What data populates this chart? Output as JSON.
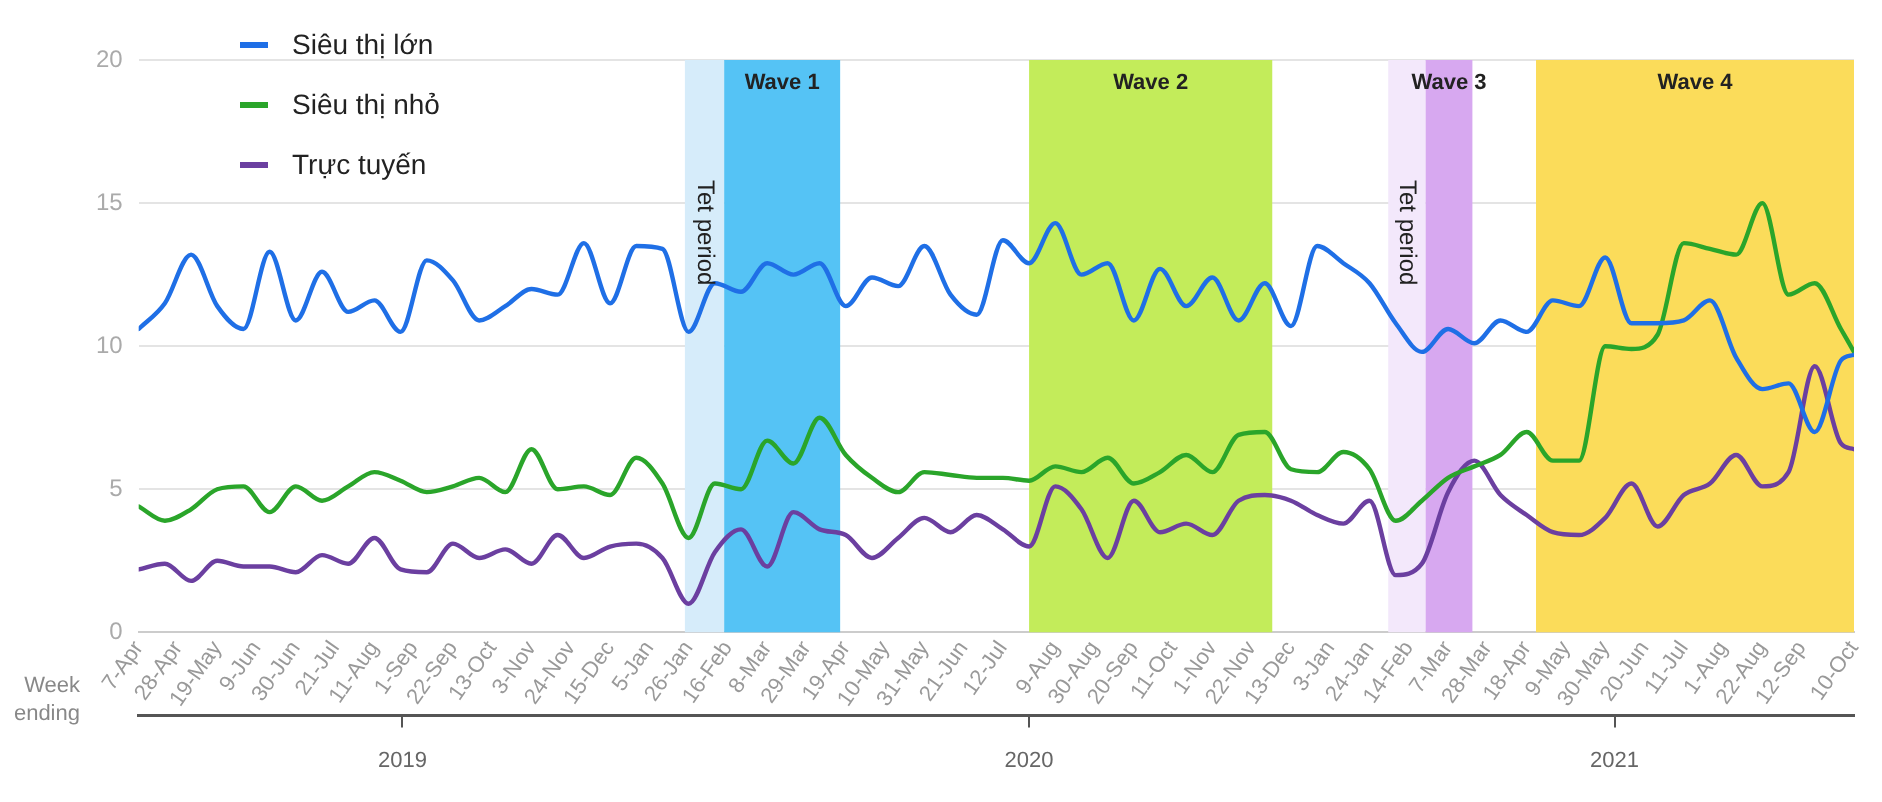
{
  "chart_data": {
    "type": "line",
    "xlabel": "Week ending",
    "x": [
      "2019-04-07",
      "2019-04-21",
      "2019-05-05",
      "2019-05-19",
      "2019-06-02",
      "2019-06-16",
      "2019-06-30",
      "2019-07-14",
      "2019-07-28",
      "2019-08-11",
      "2019-08-25",
      "2019-09-08",
      "2019-09-22",
      "2019-10-06",
      "2019-10-20",
      "2019-11-03",
      "2019-11-17",
      "2019-12-01",
      "2019-12-15",
      "2019-12-29",
      "2020-01-12",
      "2020-01-26",
      "2020-02-09",
      "2020-02-23",
      "2020-03-08",
      "2020-03-22",
      "2020-04-05",
      "2020-04-19",
      "2020-05-03",
      "2020-05-17",
      "2020-05-31",
      "2020-06-14",
      "2020-06-28",
      "2020-07-12",
      "2020-07-26",
      "2020-08-09",
      "2020-08-23",
      "2020-09-06",
      "2020-09-20",
      "2020-10-04",
      "2020-10-18",
      "2020-11-01",
      "2020-11-15",
      "2020-11-29",
      "2020-12-13",
      "2020-12-27",
      "2021-01-10",
      "2021-01-24",
      "2021-02-07",
      "2021-02-21",
      "2021-03-07",
      "2021-03-21",
      "2021-04-04",
      "2021-04-18",
      "2021-05-02",
      "2021-05-16",
      "2021-05-30",
      "2021-06-13",
      "2021-06-27",
      "2021-07-11",
      "2021-07-25",
      "2021-08-08",
      "2021-08-22",
      "2021-09-05",
      "2021-09-19",
      "2021-10-03",
      "2021-10-10"
    ],
    "series": [
      {
        "name": "Siêu thị lớn",
        "color": "#1f6fe6",
        "values": [
          10.6,
          11.5,
          13.2,
          11.4,
          10.6,
          13.3,
          10.9,
          12.6,
          11.2,
          11.6,
          10.5,
          13.0,
          12.3,
          10.9,
          11.4,
          12.0,
          11.8,
          13.6,
          11.5,
          13.5,
          13.4,
          10.5,
          12.2,
          11.9,
          12.9,
          12.5,
          12.9,
          11.4,
          12.4,
          12.1,
          13.5,
          11.8,
          11.1,
          13.7,
          12.9,
          14.3,
          12.5,
          12.9,
          10.9,
          12.7,
          11.4,
          12.4,
          10.9,
          12.2,
          10.7,
          13.5,
          12.9,
          12.2,
          10.8,
          9.8,
          10.6,
          10.1,
          10.9,
          10.5,
          11.6,
          11.4,
          13.1,
          10.8,
          10.8,
          10.9,
          11.6,
          9.6,
          8.5,
          8.7,
          7.0,
          9.5,
          9.7
        ]
      },
      {
        "name": "Siêu thị nhỏ",
        "color": "#2aa52a",
        "values": [
          4.4,
          3.9,
          4.3,
          5.0,
          5.1,
          4.2,
          5.1,
          4.6,
          5.1,
          5.6,
          5.3,
          4.9,
          5.1,
          5.4,
          4.9,
          6.4,
          5.0,
          5.1,
          4.8,
          6.1,
          5.2,
          3.3,
          5.2,
          5.0,
          6.7,
          5.9,
          7.5,
          6.2,
          5.4,
          4.9,
          5.6,
          5.5,
          5.4,
          5.4,
          5.3,
          5.8,
          5.6,
          6.1,
          5.2,
          5.6,
          6.2,
          5.6,
          6.9,
          7.0,
          5.7,
          5.6,
          6.3,
          5.7,
          3.9,
          4.6,
          5.4,
          5.8,
          6.2,
          7.0,
          6.0,
          6.0,
          10.0,
          9.9,
          10.4,
          13.6,
          13.4,
          13.2,
          15.0,
          11.8,
          12.2,
          10.6,
          9.8
        ]
      },
      {
        "name": "Trực tuyến",
        "color": "#6b3fa0",
        "values": [
          2.2,
          2.4,
          1.8,
          2.5,
          2.3,
          2.3,
          2.1,
          2.7,
          2.4,
          3.3,
          2.2,
          2.1,
          3.1,
          2.6,
          2.9,
          2.4,
          3.4,
          2.6,
          3.0,
          3.1,
          2.6,
          1.0,
          2.8,
          3.6,
          2.3,
          4.2,
          3.6,
          3.4,
          2.6,
          3.3,
          4.0,
          3.5,
          4.1,
          3.6,
          3.0,
          5.1,
          4.3,
          2.6,
          4.6,
          3.5,
          3.8,
          3.4,
          4.6,
          4.8,
          4.6,
          4.1,
          3.8,
          4.6,
          2.0,
          2.4,
          4.9,
          6.0,
          4.8,
          4.1,
          3.5,
          3.4,
          4.0,
          5.2,
          3.7,
          4.8,
          5.2,
          6.2,
          5.1,
          5.6,
          9.3,
          6.6,
          6.4
        ]
      }
    ],
    "xlim": [
      "2019-04-07",
      "2021-10-10"
    ],
    "xticks": [
      {
        "value": "2019-04-07",
        "label": "7-Apr"
      },
      {
        "value": "2019-04-28",
        "label": "28-Apr"
      },
      {
        "value": "2019-05-19",
        "label": "19-May"
      },
      {
        "value": "2019-06-09",
        "label": "9-Jun"
      },
      {
        "value": "2019-06-30",
        "label": "30-Jun"
      },
      {
        "value": "2019-07-21",
        "label": "21-Jul"
      },
      {
        "value": "2019-08-11",
        "label": "11-Aug"
      },
      {
        "value": "2019-09-01",
        "label": "1-Sep"
      },
      {
        "value": "2019-09-22",
        "label": "22-Sep"
      },
      {
        "value": "2019-10-13",
        "label": "13-Oct"
      },
      {
        "value": "2019-11-03",
        "label": "3-Nov"
      },
      {
        "value": "2019-11-24",
        "label": "24-Nov"
      },
      {
        "value": "2019-12-15",
        "label": "15-Dec"
      },
      {
        "value": "2020-01-05",
        "label": "5-Jan"
      },
      {
        "value": "2020-01-26",
        "label": "26-Jan"
      },
      {
        "value": "2020-02-16",
        "label": "16-Feb"
      },
      {
        "value": "2020-03-08",
        "label": "8-Mar"
      },
      {
        "value": "2020-03-29",
        "label": "29-Mar"
      },
      {
        "value": "2020-04-19",
        "label": "19-Apr"
      },
      {
        "value": "2020-05-10",
        "label": "10-May"
      },
      {
        "value": "2020-05-31",
        "label": "31-May"
      },
      {
        "value": "2020-06-21",
        "label": "21-Jun"
      },
      {
        "value": "2020-07-12",
        "label": "12-Jul"
      },
      {
        "value": "2020-08-09",
        "label": "9-Aug"
      },
      {
        "value": "2020-08-30",
        "label": "30-Aug"
      },
      {
        "value": "2020-09-20",
        "label": "20-Sep"
      },
      {
        "value": "2020-10-11",
        "label": "11-Oct"
      },
      {
        "value": "2020-11-01",
        "label": "1-Nov"
      },
      {
        "value": "2020-11-22",
        "label": "22-Nov"
      },
      {
        "value": "2020-12-13",
        "label": "13-Dec"
      },
      {
        "value": "2021-01-03",
        "label": "3-Jan"
      },
      {
        "value": "2021-01-24",
        "label": "24-Jan"
      },
      {
        "value": "2021-02-14",
        "label": "14-Feb"
      },
      {
        "value": "2021-03-07",
        "label": "7-Mar"
      },
      {
        "value": "2021-03-28",
        "label": "28-Mar"
      },
      {
        "value": "2021-04-18",
        "label": "18-Apr"
      },
      {
        "value": "2021-05-09",
        "label": "9-May"
      },
      {
        "value": "2021-05-30",
        "label": "30-May"
      },
      {
        "value": "2021-06-20",
        "label": "20-Jun"
      },
      {
        "value": "2021-07-11",
        "label": "11-Jul"
      },
      {
        "value": "2021-08-01",
        "label": "1-Aug"
      },
      {
        "value": "2021-08-22",
        "label": "22-Aug"
      },
      {
        "value": "2021-09-12",
        "label": "12-Sep"
      },
      {
        "value": "2021-10-10",
        "label": "10-Oct"
      }
    ],
    "x2lim": [
      "2019-04-07",
      "2021-10-10"
    ],
    "x2ticks": [
      {
        "value": "2019-08-26",
        "label": "2019"
      },
      {
        "value": "2020-07-26",
        "label": "2020"
      },
      {
        "value": "2021-06-04",
        "label": "2021"
      }
    ],
    "ylim": [
      0,
      20
    ],
    "yticks": [
      0,
      5,
      10,
      15,
      20
    ],
    "bands": [
      {
        "axis": "x",
        "from": "2020-01-24",
        "to": "2020-02-14",
        "label": "Tet period",
        "color": "#d6ecfa"
      },
      {
        "axis": "x",
        "from": "2020-02-14",
        "to": "2020-04-16",
        "label": "Wave 1",
        "color": "#55c3f5"
      },
      {
        "axis": "x",
        "from": "2020-07-26",
        "to": "2020-12-03",
        "label": "Wave 2",
        "color": "#c3ec5a"
      },
      {
        "axis": "x",
        "from": "2021-02-03",
        "to": "2021-02-23",
        "label": "Tet period",
        "color": "#f3e8fb"
      },
      {
        "axis": "x",
        "from": "2021-02-23",
        "to": "2021-03-20",
        "label": "Wave 3",
        "color": "#d7a8f0"
      },
      {
        "axis": "x",
        "from": "2021-04-23",
        "to": "2021-10-10",
        "label": "Wave 4",
        "color": "#fbdc5a"
      }
    ],
    "grid": "y",
    "legend": "top left"
  }
}
